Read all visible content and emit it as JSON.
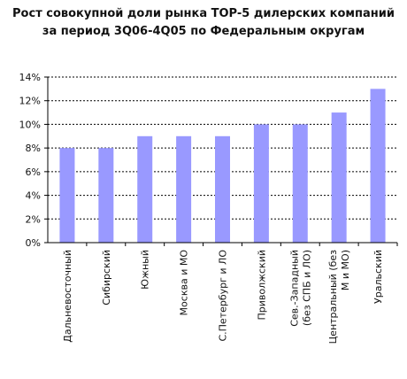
{
  "chart_data": {
    "type": "bar",
    "title": [
      "Рост совокупной доли рынка TOP-5 дилерских компаний",
      "за период 3Q06-4Q05 по Федеральным округам"
    ],
    "categories": [
      [
        "Дальневосточный"
      ],
      [
        "Сибирский"
      ],
      [
        "Южный"
      ],
      [
        "Москва и МО"
      ],
      [
        "С.Петербург и ЛО"
      ],
      [
        "Приволжский"
      ],
      [
        "Сев.-Западный",
        "(без СПБ и ЛО)"
      ],
      [
        "Центральный (без",
        "М и МО)"
      ],
      [
        "Уральский"
      ]
    ],
    "values": [
      8,
      8,
      9,
      9,
      9,
      10,
      10,
      11,
      13
    ],
    "ylim": [
      0,
      14
    ],
    "yticks": [
      "0%",
      "2%",
      "4%",
      "6%",
      "8%",
      "10%",
      "12%",
      "14%"
    ],
    "grid": true,
    "bar_color": "#9999ff"
  }
}
